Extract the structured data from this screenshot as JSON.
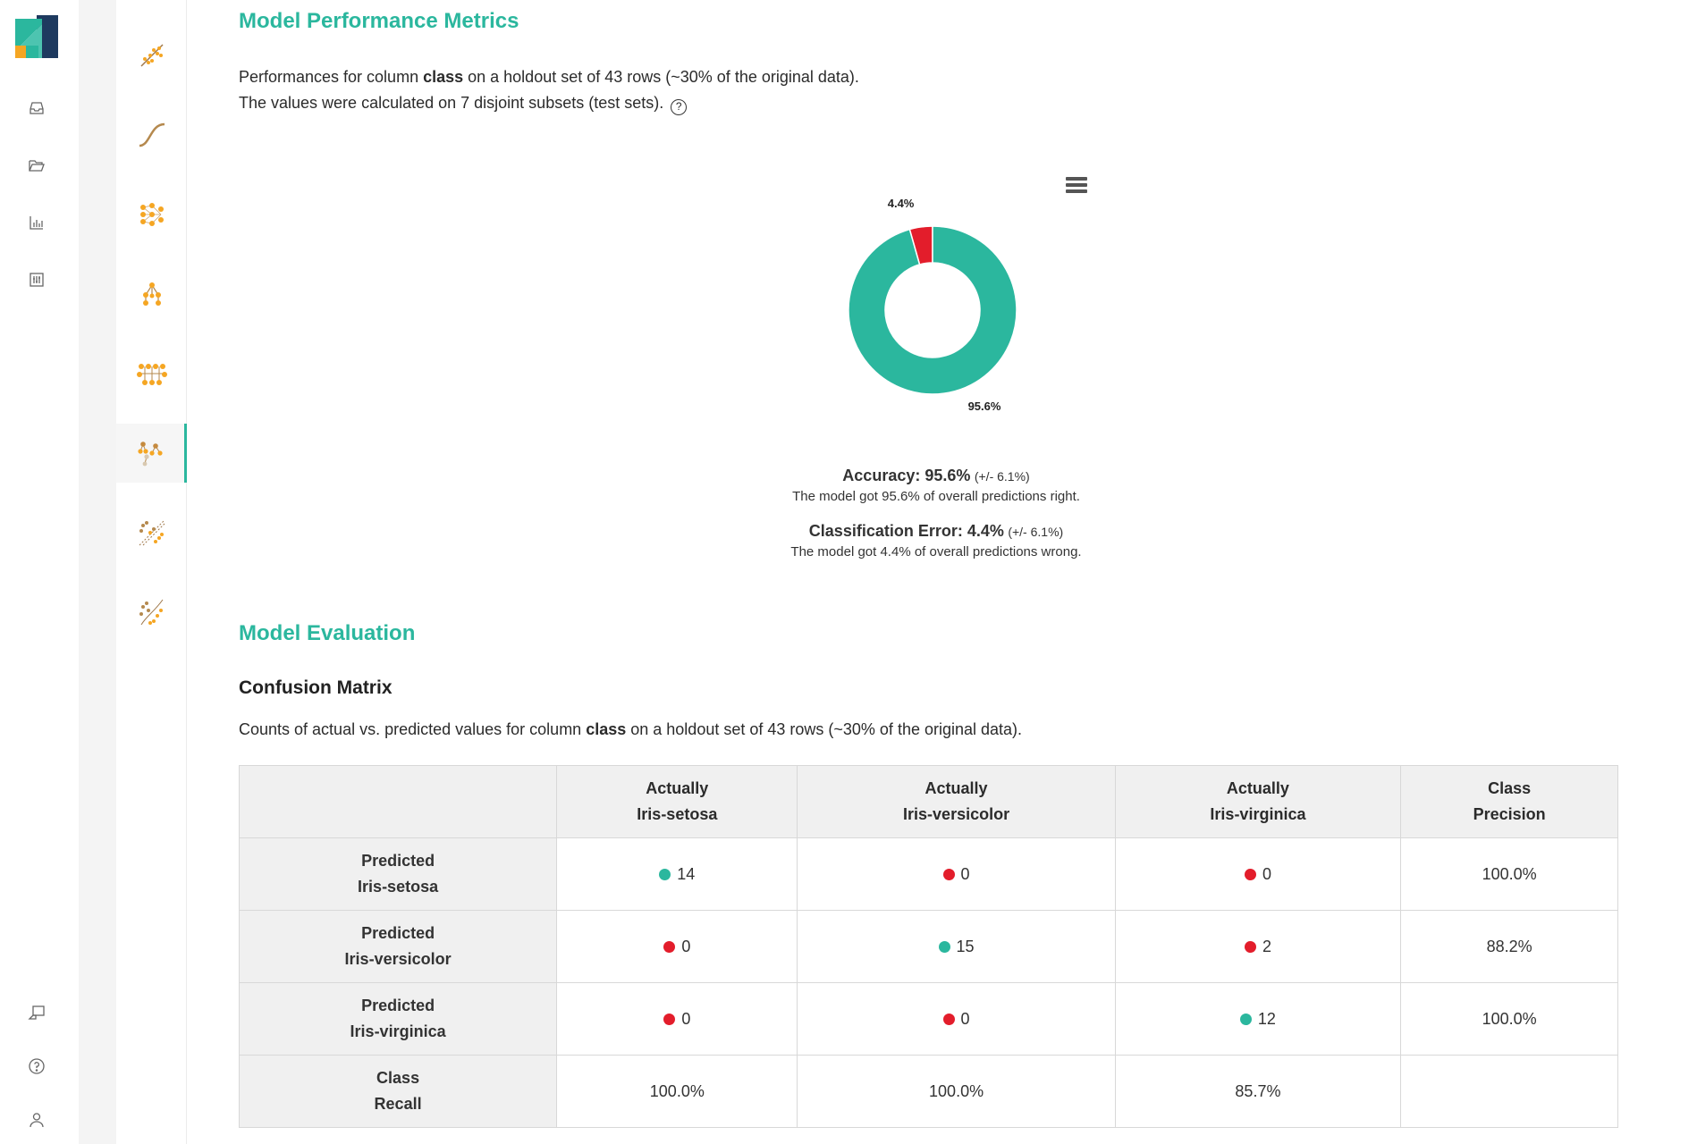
{
  "colors": {
    "accent": "#2bb79e",
    "error": "#e31d2b",
    "orange": "#f5a623"
  },
  "nav_primary": {
    "icons": [
      "inbox-icon",
      "folder-icon",
      "bar-chart-icon",
      "sliders-icon",
      "feedback-icon",
      "help-icon",
      "user-icon"
    ]
  },
  "nav_models": {
    "items": [
      "linear-model-icon",
      "logistic-curve-icon",
      "neural-net-icon",
      "decision-tree-icon",
      "deep-learning-icon",
      "random-forest-icon",
      "gradient-boosted-icon",
      "svm-icon"
    ],
    "active_index": 5
  },
  "performance": {
    "title": "Model Performance Metrics",
    "line1_pre": "Performances for column ",
    "line1_bold": "class",
    "line1_post": " on a holdout set of 43 rows (~30% of the original data).",
    "line2": "The values were calculated on 7 disjoint subsets (test sets).",
    "help_glyph": "?"
  },
  "chart_data": {
    "type": "pie",
    "donut": true,
    "slices": [
      {
        "label": "95.6%",
        "value": 95.6,
        "color": "#2bb79e"
      },
      {
        "label": "4.4%",
        "value": 4.4,
        "color": "#e31d2b"
      }
    ]
  },
  "metrics": {
    "accuracy_title": "Accuracy: 95.6%",
    "accuracy_sub": "(+/- 6.1%)",
    "accuracy_desc": "The model got 95.6% of overall predictions right.",
    "error_title": "Classification Error: 4.4%",
    "error_sub": "(+/- 6.1%)",
    "error_desc": "The model got 4.4% of overall predictions wrong."
  },
  "evaluation": {
    "title": "Model Evaluation",
    "cm_title": "Confusion Matrix",
    "desc_pre": "Counts of actual vs. predicted values for column ",
    "desc_bold": "class",
    "desc_post": " on a holdout set of 43 rows (~30% of the original data)."
  },
  "confusion_matrix": {
    "headers": [
      {
        "l1": "",
        "l2": ""
      },
      {
        "l1": "Actually",
        "l2": "Iris-setosa"
      },
      {
        "l1": "Actually",
        "l2": "Iris-versicolor"
      },
      {
        "l1": "Actually",
        "l2": "Iris-virginica"
      },
      {
        "l1": "Class",
        "l2": "Precision"
      }
    ],
    "rows": [
      {
        "l1": "Predicted",
        "l2": "Iris-setosa",
        "cells": [
          {
            "v": "14",
            "s": "good"
          },
          {
            "v": "0",
            "s": "bad"
          },
          {
            "v": "0",
            "s": "bad"
          }
        ],
        "precision": "100.0%"
      },
      {
        "l1": "Predicted",
        "l2": "Iris-versicolor",
        "cells": [
          {
            "v": "0",
            "s": "bad"
          },
          {
            "v": "15",
            "s": "good"
          },
          {
            "v": "2",
            "s": "bad"
          }
        ],
        "precision": "88.2%"
      },
      {
        "l1": "Predicted",
        "l2": "Iris-virginica",
        "cells": [
          {
            "v": "0",
            "s": "bad"
          },
          {
            "v": "0",
            "s": "bad"
          },
          {
            "v": "12",
            "s": "good"
          }
        ],
        "precision": "100.0%"
      }
    ],
    "recall_row": {
      "l1": "Class",
      "l2": "Recall",
      "values": [
        "100.0%",
        "100.0%",
        "85.7%",
        ""
      ]
    }
  }
}
